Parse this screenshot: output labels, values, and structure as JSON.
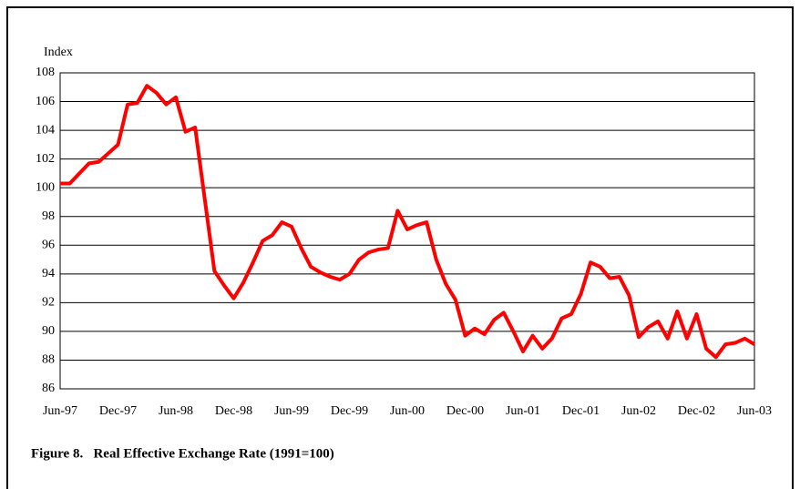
{
  "chart_data": {
    "type": "line",
    "title": "Figure 8.   Real Effective Exchange Rate (1991=100)",
    "y_label": "Index",
    "categories": [
      "Jun-97",
      null,
      null,
      null,
      null,
      null,
      "Dec-97",
      null,
      null,
      null,
      null,
      null,
      "Jun-98",
      null,
      null,
      null,
      null,
      null,
      "Dec-98",
      null,
      null,
      null,
      null,
      null,
      "Jun-99",
      null,
      null,
      null,
      null,
      null,
      "Dec-99",
      null,
      null,
      null,
      null,
      null,
      "Jun-00",
      null,
      null,
      null,
      null,
      null,
      "Dec-00",
      null,
      null,
      null,
      null,
      null,
      "Jun-01",
      null,
      null,
      null,
      null,
      null,
      "Dec-01",
      null,
      null,
      null,
      null,
      null,
      "Jun-02",
      null,
      null,
      null,
      null,
      null,
      "Dec-02",
      null,
      null,
      null,
      null,
      null,
      "Jun-03"
    ],
    "values": [
      100.3,
      100.3,
      101.0,
      101.7,
      101.8,
      102.4,
      103.0,
      105.8,
      105.9,
      107.1,
      106.6,
      105.8,
      106.3,
      103.9,
      104.2,
      99.2,
      94.2,
      93.2,
      92.3,
      93.4,
      94.8,
      96.3,
      96.7,
      97.6,
      97.3,
      95.8,
      94.5,
      94.1,
      93.8,
      93.6,
      94.0,
      95.0,
      95.5,
      95.7,
      95.8,
      98.4,
      97.1,
      97.4,
      97.6,
      95.0,
      93.3,
      92.2,
      89.7,
      90.2,
      89.8,
      90.8,
      91.3,
      90.0,
      88.6,
      89.7,
      88.8,
      89.5,
      90.9,
      91.2,
      92.6,
      94.8,
      94.5,
      93.7,
      93.8,
      92.5,
      89.6,
      90.3,
      90.7,
      89.5,
      91.4,
      89.5,
      91.2,
      88.8,
      88.2,
      89.1,
      89.2,
      89.5,
      89.1
    ],
    "color": "#ff0000",
    "ylim": [
      86,
      108
    ],
    "yticks": [
      86,
      88,
      90,
      92,
      94,
      96,
      98,
      100,
      102,
      104,
      106,
      108
    ],
    "grid": true
  }
}
